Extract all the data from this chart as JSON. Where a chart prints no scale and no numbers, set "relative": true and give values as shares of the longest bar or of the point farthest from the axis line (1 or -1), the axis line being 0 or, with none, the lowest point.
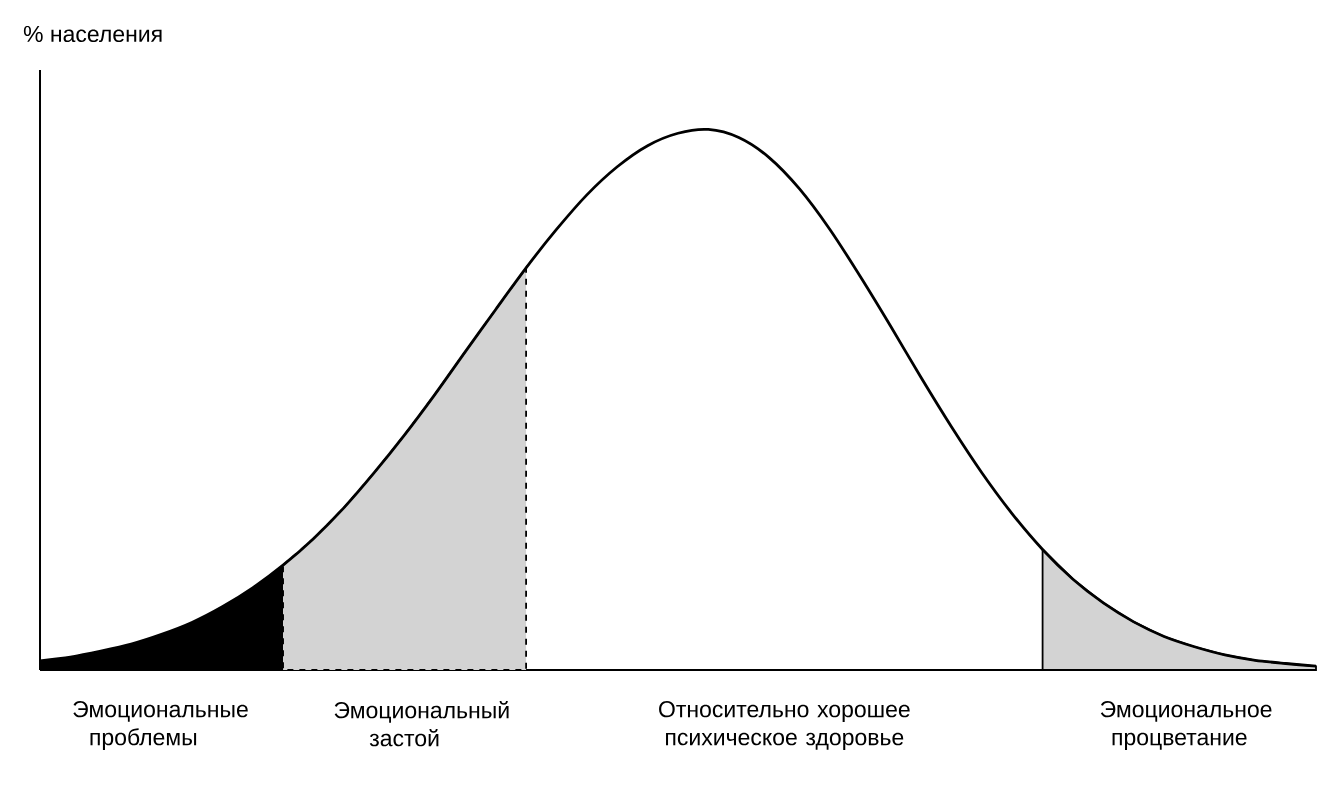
{
  "chart_data": {
    "type": "area",
    "relative": true,
    "ylabel": "% населения",
    "categories": [
      null,
      null,
      null,
      null,
      null,
      null,
      null,
      null,
      null,
      null,
      null,
      null,
      null,
      null,
      null,
      null,
      null,
      null,
      null,
      null,
      null,
      null,
      null,
      null,
      null,
      null,
      null,
      null,
      null,
      null,
      null,
      null,
      null,
      null,
      null,
      null,
      null,
      null,
      null,
      null,
      null,
      null,
      null
    ],
    "series": [
      {
        "type": "line",
        "color": "#000000",
        "values": [
          0.017,
          0.024,
          0.035,
          0.048,
          0.066,
          0.088,
          0.117,
          0.152,
          0.194,
          0.243,
          0.3,
          0.365,
          0.435,
          0.51,
          0.589,
          0.667,
          0.744,
          0.815,
          0.879,
          0.931,
          0.97,
          0.993,
          1.0,
          0.985,
          0.948,
          0.89,
          0.815,
          0.728,
          0.636,
          0.541,
          0.45,
          0.365,
          0.289,
          0.223,
          0.168,
          0.124,
          0.089,
          0.062,
          0.043,
          0.028,
          0.018,
          0.012,
          0.007
        ]
      },
      {
        "color": "#000000",
        "values": [
          0.017,
          0.024,
          0.035,
          0.048,
          0.066,
          0.088,
          0.117,
          0.152,
          0.194,
          null,
          null,
          null,
          null,
          null,
          null,
          null,
          null,
          null,
          null,
          null,
          null,
          null,
          null,
          null,
          null,
          null,
          null,
          null,
          null,
          null,
          null,
          null,
          null,
          null,
          null,
          null,
          null,
          null,
          null,
          null,
          null,
          null,
          null
        ]
      },
      {
        "color": "#d3d3d3",
        "line_style": "dashed",
        "values": [
          null,
          null,
          null,
          null,
          null,
          null,
          null,
          null,
          0.194,
          0.243,
          0.3,
          0.365,
          0.435,
          0.51,
          0.589,
          0.667,
          0.744,
          null,
          null,
          null,
          null,
          null,
          null,
          null,
          null,
          null,
          null,
          null,
          null,
          null,
          null,
          null,
          null,
          null,
          null,
          null,
          null,
          null,
          null,
          null,
          null,
          null,
          null
        ]
      },
      {
        "color": "#d3d3d3",
        "line_style": "solid",
        "values": [
          null,
          null,
          null,
          null,
          null,
          null,
          null,
          null,
          null,
          null,
          null,
          null,
          null,
          null,
          null,
          null,
          null,
          null,
          null,
          null,
          null,
          null,
          null,
          null,
          null,
          null,
          null,
          null,
          null,
          null,
          null,
          null,
          null,
          0.223,
          0.168,
          0.124,
          0.089,
          0.062,
          0.043,
          0.028,
          0.018,
          0.012,
          0.007
        ]
      }
    ],
    "annotations": [
      "Эмоциональные проблемы",
      "Эмоциональный застой",
      "Относительно хорошее психическое здоровье",
      "Эмоциональное процветание"
    ]
  }
}
